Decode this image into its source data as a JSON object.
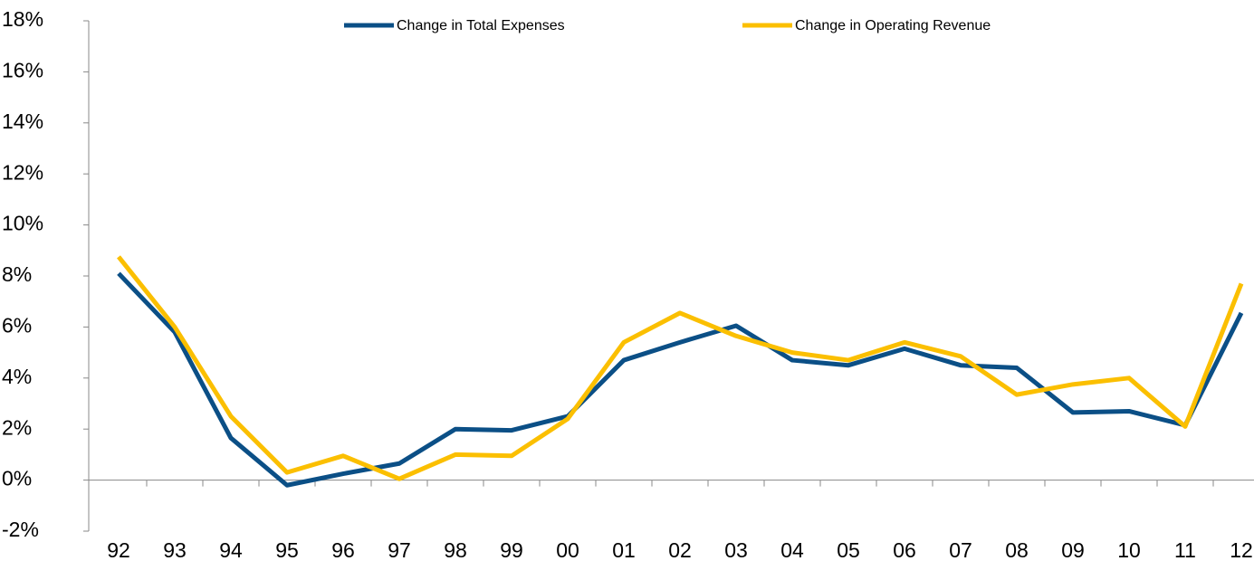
{
  "chart_data": {
    "type": "line",
    "categories": [
      "92",
      "93",
      "94",
      "95",
      "96",
      "97",
      "98",
      "99",
      "00",
      "01",
      "02",
      "03",
      "04",
      "05",
      "06",
      "07",
      "08",
      "09",
      "10",
      "11",
      "12"
    ],
    "series": [
      {
        "name": "Change in Total Expenses",
        "color": "#0b4f86",
        "values": [
          8.1,
          5.8,
          1.65,
          -0.2,
          0.25,
          0.65,
          2.0,
          1.95,
          2.5,
          4.7,
          5.4,
          6.05,
          4.7,
          4.5,
          5.15,
          4.5,
          4.4,
          2.65,
          2.7,
          2.15,
          6.55
        ]
      },
      {
        "name": "Change in Operating Revenue",
        "color": "#fbbf00",
        "values": [
          8.75,
          6.0,
          2.5,
          0.3,
          0.95,
          0.05,
          1.0,
          0.95,
          2.4,
          5.4,
          6.55,
          5.65,
          5.0,
          4.7,
          5.4,
          4.85,
          3.35,
          3.75,
          4.0,
          2.1,
          7.7
        ]
      }
    ],
    "ylim": [
      -2,
      18
    ],
    "yticks": [
      {
        "value": -2,
        "label": "-2%"
      },
      {
        "value": 0,
        "label": "0%"
      },
      {
        "value": 2,
        "label": "2%"
      },
      {
        "value": 4,
        "label": "4%"
      },
      {
        "value": 6,
        "label": "6%"
      },
      {
        "value": 8,
        "label": "8%"
      },
      {
        "value": 10,
        "label": "10%"
      },
      {
        "value": 12,
        "label": "12%"
      },
      {
        "value": 14,
        "label": "14%"
      },
      {
        "value": 16,
        "label": "16%"
      },
      {
        "value": 18,
        "label": "18%"
      }
    ],
    "legend": "top"
  }
}
